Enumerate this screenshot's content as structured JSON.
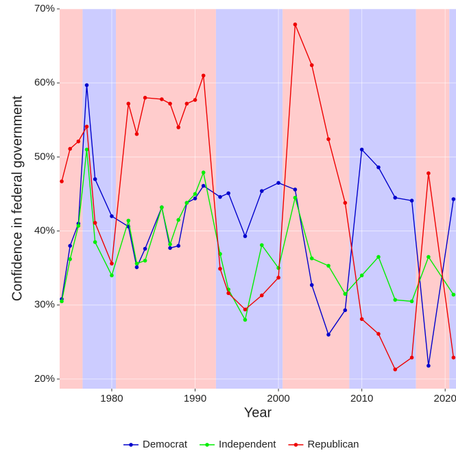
{
  "chart_data": {
    "type": "line",
    "x_label": "Year",
    "y_label": "Confidence in federal government",
    "x": [
      1974,
      1975,
      1976,
      1977,
      1978,
      1980,
      1982,
      1983,
      1984,
      1986,
      1987,
      1988,
      1989,
      1990,
      1991,
      1993,
      1994,
      1996,
      1998,
      2000,
      2002,
      2004,
      2006,
      2008,
      2010,
      2012,
      2014,
      2016,
      2018,
      2021
    ],
    "series": [
      {
        "name": "Democrat",
        "color": "#0000cc",
        "values": [
          30.8,
          38.0,
          41.0,
          59.7,
          47.0,
          42.0,
          40.6,
          35.1,
          37.6,
          43.2,
          37.7,
          38.0,
          43.8,
          44.4,
          46.1,
          44.6,
          45.1,
          39.3,
          45.4,
          46.5,
          45.6,
          32.7,
          26.0,
          29.3,
          51.0,
          48.6,
          44.5,
          44.1,
          21.8,
          44.3
        ]
      },
      {
        "name": "Independent",
        "color": "#00ee00",
        "values": [
          30.5,
          36.2,
          40.7,
          51.0,
          38.5,
          34.0,
          41.4,
          35.6,
          36.0,
          43.2,
          38.2,
          41.5,
          43.8,
          45.0,
          47.9,
          36.9,
          32.1,
          28.0,
          38.1,
          35.0,
          44.5,
          36.3,
          35.3,
          31.5,
          34.0,
          36.5,
          30.7,
          30.5,
          36.5,
          31.4
        ]
      },
      {
        "name": "Republican",
        "color": "#ee0000",
        "values": [
          46.7,
          51.1,
          52.1,
          54.1,
          41.1,
          35.6,
          57.2,
          53.1,
          58.0,
          57.8,
          57.2,
          54.0,
          57.2,
          57.7,
          61.0,
          34.9,
          31.6,
          29.4,
          31.3,
          33.7,
          67.9,
          62.4,
          52.4,
          43.8,
          28.1,
          26.1,
          21.3,
          22.9,
          47.8,
          22.9
        ]
      }
    ],
    "bands": [
      {
        "from": 1973.75,
        "to": 1976.5,
        "color": "#ffcccc"
      },
      {
        "from": 1976.5,
        "to": 1980.5,
        "color": "#ccccff"
      },
      {
        "from": 1980.5,
        "to": 1992.5,
        "color": "#ffcccc"
      },
      {
        "from": 1992.5,
        "to": 2000.5,
        "color": "#ccccff"
      },
      {
        "from": 2000.5,
        "to": 2008.5,
        "color": "#ffcccc"
      },
      {
        "from": 2008.5,
        "to": 2016.5,
        "color": "#ccccff"
      },
      {
        "from": 2016.5,
        "to": 2020.5,
        "color": "#ffcccc"
      },
      {
        "from": 2020.5,
        "to": 2021.3,
        "color": "#ccccff"
      }
    ],
    "xlim": [
      1973.75,
      2021.3
    ],
    "ylim": [
      18.7,
      70
    ],
    "xticks": [
      1980,
      1990,
      2000,
      2010,
      2020
    ],
    "yticks": [
      {
        "value": 20,
        "label": "20%"
      },
      {
        "value": 30,
        "label": "30%"
      },
      {
        "value": 40,
        "label": "40%"
      },
      {
        "value": 50,
        "label": "50%"
      },
      {
        "value": 60,
        "label": "60%"
      },
      {
        "value": 70,
        "label": "70%"
      }
    ],
    "grid": true,
    "legend": "bottom"
  }
}
